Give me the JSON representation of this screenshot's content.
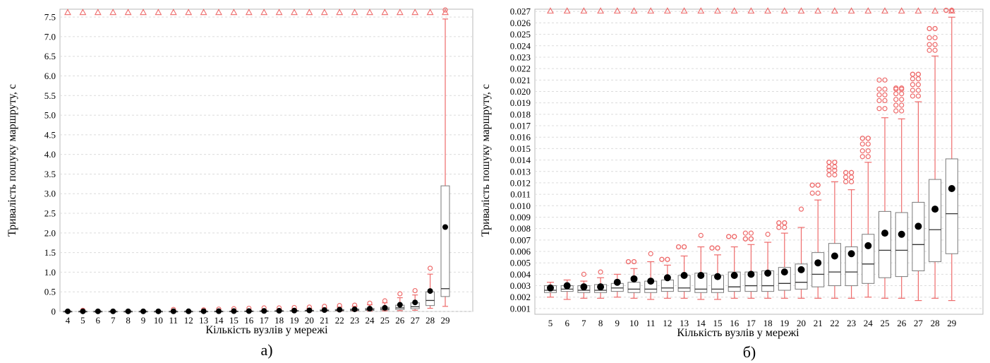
{
  "chart_data": [
    {
      "type": "box",
      "panel_label": "а)",
      "xlabel": "Кількість вузлів  у мережі",
      "ylabel": "Тривалість пошуку маршруту, с",
      "ylim": [
        0,
        7.7
      ],
      "grid": true,
      "y_ticks": [
        "0",
        "0.5",
        "1.0",
        "1.5",
        "2.0",
        "2.5",
        "3.0",
        "3.5",
        "4.0",
        "4.5",
        "5.0",
        "5.5",
        "6.0",
        "6.5",
        "7.0",
        "7.5"
      ],
      "y_tick_values": [
        0,
        0.5,
        1.0,
        1.5,
        2.0,
        2.5,
        3.0,
        3.5,
        4.0,
        4.5,
        5.0,
        5.5,
        6.0,
        6.5,
        7.0,
        7.5
      ],
      "categories": [
        "4",
        "5",
        "6",
        "7",
        "8",
        "9",
        "10",
        "11",
        "12",
        "13",
        "14",
        "15",
        "16",
        "17",
        "18",
        "19",
        "20",
        "21",
        "22",
        "23",
        "24",
        "25",
        "26",
        "27",
        "28",
        "29"
      ],
      "overflow_marker_value": 7.62,
      "boxes": [
        {
          "q1": 0.001,
          "median": 0.002,
          "q3": 0.003,
          "low": 0.0005,
          "high": 0.004,
          "mean": 0.003,
          "outliers": []
        },
        {
          "q1": 0.001,
          "median": 0.002,
          "q3": 0.003,
          "low": 0.0005,
          "high": 0.004,
          "mean": 0.003,
          "outliers": [
            0.03
          ]
        },
        {
          "q1": 0.001,
          "median": 0.002,
          "q3": 0.003,
          "low": 0.0005,
          "high": 0.004,
          "mean": 0.003,
          "outliers": []
        },
        {
          "q1": 0.001,
          "median": 0.002,
          "q3": 0.003,
          "low": 0.0005,
          "high": 0.004,
          "mean": 0.003,
          "outliers": []
        },
        {
          "q1": 0.001,
          "median": 0.002,
          "q3": 0.003,
          "low": 0.0005,
          "high": 0.004,
          "mean": 0.003,
          "outliers": []
        },
        {
          "q1": 0.001,
          "median": 0.002,
          "q3": 0.003,
          "low": 0.0005,
          "high": 0.004,
          "mean": 0.003,
          "outliers": []
        },
        {
          "q1": 0.001,
          "median": 0.002,
          "q3": 0.003,
          "low": 0.0005,
          "high": 0.004,
          "mean": 0.003,
          "outliers": []
        },
        {
          "q1": 0.001,
          "median": 0.002,
          "q3": 0.003,
          "low": 0.0005,
          "high": 0.006,
          "mean": 0.004,
          "outliers": [
            0.05
          ]
        },
        {
          "q1": 0.001,
          "median": 0.003,
          "q3": 0.004,
          "low": 0.0005,
          "high": 0.008,
          "mean": 0.004,
          "outliers": []
        },
        {
          "q1": 0.002,
          "median": 0.003,
          "q3": 0.005,
          "low": 0.001,
          "high": 0.01,
          "mean": 0.005,
          "outliers": [
            0.04
          ]
        },
        {
          "q1": 0.002,
          "median": 0.004,
          "q3": 0.006,
          "low": 0.001,
          "high": 0.015,
          "mean": 0.006,
          "outliers": [
            0.06
          ]
        },
        {
          "q1": 0.003,
          "median": 0.005,
          "q3": 0.008,
          "low": 0.001,
          "high": 0.02,
          "mean": 0.008,
          "outliers": [
            0.07
          ]
        },
        {
          "q1": 0.004,
          "median": 0.007,
          "q3": 0.011,
          "low": 0.002,
          "high": 0.03,
          "mean": 0.01,
          "outliers": [
            0.08
          ]
        },
        {
          "q1": 0.005,
          "median": 0.009,
          "q3": 0.014,
          "low": 0.002,
          "high": 0.035,
          "mean": 0.013,
          "outliers": [
            0.09
          ]
        },
        {
          "q1": 0.006,
          "median": 0.012,
          "q3": 0.018,
          "low": 0.003,
          "high": 0.045,
          "mean": 0.017,
          "outliers": [
            0.09
          ]
        },
        {
          "q1": 0.008,
          "median": 0.015,
          "q3": 0.024,
          "low": 0.004,
          "high": 0.06,
          "mean": 0.022,
          "outliers": [
            0.1
          ]
        },
        {
          "q1": 0.01,
          "median": 0.019,
          "q3": 0.03,
          "low": 0.005,
          "high": 0.075,
          "mean": 0.027,
          "outliers": [
            0.11
          ]
        },
        {
          "q1": 0.013,
          "median": 0.024,
          "q3": 0.04,
          "low": 0.006,
          "high": 0.09,
          "mean": 0.035,
          "outliers": [
            0.13
          ]
        },
        {
          "q1": 0.017,
          "median": 0.03,
          "q3": 0.05,
          "low": 0.008,
          "high": 0.11,
          "mean": 0.044,
          "outliers": [
            0.15
          ]
        },
        {
          "q1": 0.021,
          "median": 0.038,
          "q3": 0.063,
          "low": 0.01,
          "high": 0.13,
          "mean": 0.055,
          "outliers": [
            0.16
          ]
        },
        {
          "q1": 0.027,
          "median": 0.049,
          "q3": 0.08,
          "low": 0.012,
          "high": 0.17,
          "mean": 0.07,
          "outliers": [
            0.21
          ]
        },
        {
          "q1": 0.036,
          "median": 0.064,
          "q3": 0.105,
          "low": 0.015,
          "high": 0.22,
          "mean": 0.092,
          "outliers": [
            0.27
          ]
        },
        {
          "q1": 0.05,
          "median": 0.09,
          "q3": 0.16,
          "low": 0.02,
          "high": 0.35,
          "mean": 0.17,
          "outliers": [
            0.45
          ]
        },
        {
          "q1": 0.07,
          "median": 0.12,
          "q3": 0.22,
          "low": 0.03,
          "high": 0.42,
          "mean": 0.23,
          "outliers": [
            0.53
          ]
        },
        {
          "q1": 0.15,
          "median": 0.28,
          "q3": 0.5,
          "low": 0.08,
          "high": 0.95,
          "mean": 0.52,
          "outliers": [
            1.1
          ]
        },
        {
          "q1": 0.38,
          "median": 0.58,
          "q3": 3.2,
          "low": 0.13,
          "high": 7.45,
          "mean": 2.15,
          "outliers": [
            7.68
          ]
        }
      ]
    },
    {
      "type": "box",
      "panel_label": "б)",
      "xlabel": "Кількість вузлів  у мережі",
      "ylabel": "Тривалість пошуку маршруту, с",
      "ylim": [
        0.0005,
        0.0272
      ],
      "grid": true,
      "y_ticks": [
        "0.001",
        "0.002",
        "0.003",
        "0.004",
        "0.005",
        "0.006",
        "0.007",
        "0.008",
        "0.009",
        "0.010",
        "0.011",
        "0.012",
        "0.013",
        "0.014",
        "0.015",
        "0.016",
        "0.017",
        "0.018",
        "0.019",
        "0.020",
        "0.021",
        "0.022",
        "0.023",
        "0.024",
        "0.025",
        "0.026",
        "0.027"
      ],
      "y_tick_values": [
        0.001,
        0.002,
        0.003,
        0.004,
        0.005,
        0.006,
        0.007,
        0.008,
        0.009,
        0.01,
        0.011,
        0.012,
        0.013,
        0.014,
        0.015,
        0.016,
        0.017,
        0.018,
        0.019,
        0.02,
        0.021,
        0.022,
        0.023,
        0.024,
        0.025,
        0.026,
        0.027
      ],
      "categories": [
        "5",
        "6",
        "7",
        "8",
        "9",
        "10",
        "11",
        "12",
        "13",
        "14",
        "15",
        "16",
        "17",
        "18",
        "19",
        "20",
        "21",
        "22",
        "23",
        "24",
        "25",
        "26",
        "27",
        "28",
        "29"
      ],
      "overflow_marker_value": 0.02705,
      "boxes": [
        {
          "q1": 0.0024,
          "median": 0.0026,
          "q3": 0.003,
          "low": 0.002,
          "high": 0.0033,
          "mean": 0.0028,
          "outliers": []
        },
        {
          "q1": 0.0025,
          "median": 0.0027,
          "q3": 0.003,
          "low": 0.0018,
          "high": 0.0035,
          "mean": 0.003,
          "outliers": []
        },
        {
          "q1": 0.0024,
          "median": 0.0026,
          "q3": 0.003,
          "low": 0.0019,
          "high": 0.0034,
          "mean": 0.0029,
          "outliers": [
            0.004
          ]
        },
        {
          "q1": 0.0024,
          "median": 0.0026,
          "q3": 0.0031,
          "low": 0.0019,
          "high": 0.0037,
          "mean": 0.0029,
          "outliers": [
            0.0042
          ]
        },
        {
          "q1": 0.0025,
          "median": 0.0028,
          "q3": 0.0032,
          "low": 0.002,
          "high": 0.004,
          "mean": 0.0033,
          "outliers": []
        },
        {
          "q1": 0.0024,
          "median": 0.0027,
          "q3": 0.0033,
          "low": 0.0019,
          "high": 0.0045,
          "mean": 0.0036,
          "outliers": [
            0.0051,
            0.0051
          ]
        },
        {
          "q1": 0.0024,
          "median": 0.0027,
          "q3": 0.0034,
          "low": 0.0018,
          "high": 0.0051,
          "mean": 0.0034,
          "outliers": [
            0.0058
          ]
        },
        {
          "q1": 0.0025,
          "median": 0.0028,
          "q3": 0.0035,
          "low": 0.0019,
          "high": 0.0048,
          "mean": 0.0037,
          "outliers": [
            0.0053,
            0.0053
          ]
        },
        {
          "q1": 0.0025,
          "median": 0.0028,
          "q3": 0.0039,
          "low": 0.0019,
          "high": 0.0056,
          "mean": 0.0039,
          "outliers": [
            0.0064,
            0.0064
          ]
        },
        {
          "q1": 0.0024,
          "median": 0.0027,
          "q3": 0.0041,
          "low": 0.0018,
          "high": 0.0064,
          "mean": 0.0039,
          "outliers": [
            0.0074
          ]
        },
        {
          "q1": 0.0024,
          "median": 0.0027,
          "q3": 0.0039,
          "low": 0.0018,
          "high": 0.0057,
          "mean": 0.0038,
          "outliers": [
            0.0063,
            0.0063
          ]
        },
        {
          "q1": 0.0025,
          "median": 0.0029,
          "q3": 0.0042,
          "low": 0.0019,
          "high": 0.0064,
          "mean": 0.0039,
          "outliers": [
            0.0073,
            0.0073
          ]
        },
        {
          "q1": 0.0025,
          "median": 0.003,
          "q3": 0.0042,
          "low": 0.0019,
          "high": 0.0066,
          "mean": 0.004,
          "outliers": [
            0.0071,
            0.0071,
            0.0076
          ]
        },
        {
          "q1": 0.0025,
          "median": 0.003,
          "q3": 0.0043,
          "low": 0.0019,
          "high": 0.0068,
          "mean": 0.0041,
          "outliers": [
            0.0075
          ]
        },
        {
          "q1": 0.0026,
          "median": 0.0032,
          "q3": 0.0046,
          "low": 0.0019,
          "high": 0.0076,
          "mean": 0.0042,
          "outliers": [
            0.0081,
            0.0085,
            0.0085
          ]
        },
        {
          "q1": 0.0027,
          "median": 0.0033,
          "q3": 0.0049,
          "low": 0.0019,
          "high": 0.0081,
          "mean": 0.0044,
          "outliers": [
            0.0097
          ]
        },
        {
          "q1": 0.0029,
          "median": 0.004,
          "q3": 0.0059,
          "low": 0.0019,
          "high": 0.0105,
          "mean": 0.005,
          "outliers": [
            0.0111,
            0.0118,
            0.0118
          ]
        },
        {
          "q1": 0.003,
          "median": 0.0042,
          "q3": 0.0067,
          "low": 0.0019,
          "high": 0.0121,
          "mean": 0.0056,
          "outliers": [
            0.0127,
            0.0131,
            0.0134,
            0.0138,
            0.0138
          ]
        },
        {
          "q1": 0.003,
          "median": 0.0042,
          "q3": 0.0064,
          "low": 0.0019,
          "high": 0.0114,
          "mean": 0.0058,
          "outliers": [
            0.0121,
            0.0125,
            0.0129,
            0.0129
          ]
        },
        {
          "q1": 0.0032,
          "median": 0.0049,
          "q3": 0.0075,
          "low": 0.002,
          "high": 0.0138,
          "mean": 0.0065,
          "outliers": [
            0.0143,
            0.0148,
            0.0154,
            0.0159,
            0.0159
          ]
        },
        {
          "q1": 0.0037,
          "median": 0.0061,
          "q3": 0.0095,
          "low": 0.0019,
          "high": 0.0177,
          "mean": 0.0076,
          "outliers": [
            0.0185,
            0.0192,
            0.0197,
            0.0202,
            0.021
          ]
        },
        {
          "q1": 0.0038,
          "median": 0.0061,
          "q3": 0.0094,
          "low": 0.0019,
          "high": 0.0176,
          "mean": 0.0075,
          "outliers": [
            0.0183,
            0.0188,
            0.0193,
            0.0198,
            0.0202,
            0.0203
          ]
        },
        {
          "q1": 0.0043,
          "median": 0.0066,
          "q3": 0.0103,
          "low": 0.0017,
          "high": 0.0191,
          "mean": 0.0082,
          "outliers": [
            0.0196,
            0.0201,
            0.0206,
            0.0211,
            0.0215,
            0.0215
          ]
        },
        {
          "q1": 0.0051,
          "median": 0.0079,
          "q3": 0.0123,
          "low": 0.0019,
          "high": 0.0231,
          "mean": 0.0097,
          "outliers": [
            0.0236,
            0.0241,
            0.0247,
            0.0255,
            0.0255
          ]
        },
        {
          "q1": 0.0058,
          "median": 0.0093,
          "q3": 0.0141,
          "low": 0.0017,
          "high": 0.0265,
          "mean": 0.0115,
          "outliers": [
            0.0271,
            0.0271
          ]
        }
      ]
    }
  ]
}
